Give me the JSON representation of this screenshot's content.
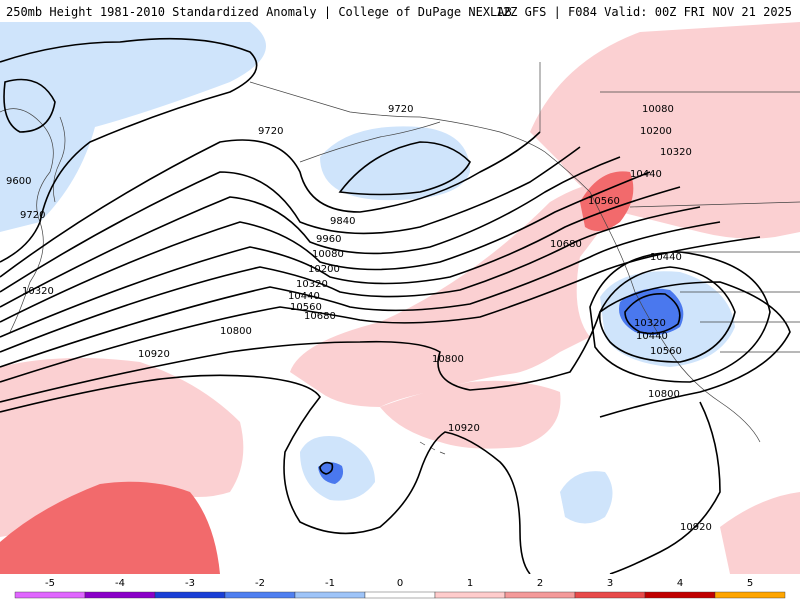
{
  "header": {
    "title_left": "250mb Height 1981-2010 Standardized Anomaly | College of DuPage NEXLAB",
    "title_right": "12Z GFS | F084 Valid: 00Z FRI NOV 21 2025"
  },
  "contour_labels": [
    "9720",
    "9720",
    "9600",
    "9720",
    "9840",
    "9960",
    "10080",
    "10200",
    "10320",
    "10320",
    "10440",
    "10560",
    "10680",
    "10800",
    "10920",
    "10800",
    "10920",
    "10080",
    "10200",
    "10320",
    "10440",
    "10560",
    "10680",
    "10440",
    "10320",
    "10440",
    "10560",
    "10800",
    "10920"
  ],
  "colorbar": {
    "ticks": [
      "-5",
      "-4",
      "-3",
      "-2",
      "-1",
      "0",
      "1",
      "2",
      "3",
      "4",
      "5"
    ],
    "colors": [
      "#e066ff",
      "#8a00c8",
      "#1a3fd6",
      "#4f7ff0",
      "#9ec4f8",
      "#ffffff",
      "#ffcccc",
      "#f49a9a",
      "#e84a4a",
      "#c00000",
      "#ffa500"
    ]
  },
  "colors": {
    "neg1": "#cfe4fb",
    "neg2": "#4a78ee",
    "pos1": "#fbd0d2",
    "pos2": "#f26a6c",
    "land": "#444444"
  }
}
